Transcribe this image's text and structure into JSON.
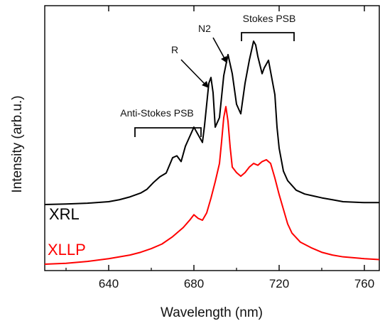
{
  "chart_data": {
    "type": "line",
    "title": "",
    "xlabel": "Wavelength (nm)",
    "ylabel": "Intensity (arb.u.)",
    "xlim": [
      610,
      767
    ],
    "ylim": [
      0,
      1
    ],
    "y_tick_labels": "none",
    "grid": false,
    "x_ticks": [
      640,
      680,
      720,
      760
    ],
    "x_tick_labels": [
      "640",
      "680",
      "720",
      "760"
    ],
    "legend": "none",
    "series": [
      {
        "name": "XRL",
        "color": "#000000",
        "x": [
          610,
          620,
          630,
          640,
          645,
          650,
          655,
          658,
          661,
          664,
          667,
          670,
          672,
          674,
          676,
          678,
          680,
          682,
          684,
          685,
          687,
          688,
          689,
          690,
          692,
          694,
          696,
          698,
          700,
          702,
          704,
          706,
          708,
          709,
          710,
          712,
          713,
          715,
          716,
          718,
          719,
          720,
          722,
          724,
          728,
          732,
          736,
          740,
          745,
          750,
          760,
          767
        ],
        "y": [
          0.145,
          0.148,
          0.152,
          0.16,
          0.17,
          0.185,
          0.205,
          0.225,
          0.26,
          0.29,
          0.31,
          0.39,
          0.4,
          0.37,
          0.45,
          0.5,
          0.55,
          0.51,
          0.47,
          0.56,
          0.78,
          0.81,
          0.73,
          0.55,
          0.6,
          0.82,
          0.93,
          0.83,
          0.67,
          0.62,
          0.78,
          0.9,
          1.0,
          0.98,
          0.92,
          0.83,
          0.86,
          0.9,
          0.84,
          0.72,
          0.55,
          0.44,
          0.32,
          0.27,
          0.22,
          0.2,
          0.19,
          0.18,
          0.17,
          0.16,
          0.155,
          0.155
        ]
      },
      {
        "name": "XLLP",
        "color": "#ff0000",
        "x": [
          610,
          620,
          630,
          640,
          650,
          655,
          660,
          665,
          670,
          675,
          678,
          680,
          682,
          684,
          686,
          688,
          690,
          692,
          693,
          694,
          695,
          696,
          697,
          698,
          700,
          702,
          704,
          706,
          708,
          710,
          712,
          714,
          716,
          718,
          720,
          722,
          724,
          726,
          730,
          735,
          740,
          745,
          750,
          760,
          767
        ],
        "y": [
          0.0,
          0.005,
          0.015,
          0.03,
          0.05,
          0.065,
          0.085,
          0.11,
          0.15,
          0.2,
          0.24,
          0.27,
          0.25,
          0.24,
          0.28,
          0.36,
          0.45,
          0.55,
          0.67,
          0.8,
          0.86,
          0.78,
          0.64,
          0.53,
          0.5,
          0.48,
          0.5,
          0.53,
          0.55,
          0.54,
          0.56,
          0.57,
          0.55,
          0.47,
          0.38,
          0.3,
          0.22,
          0.17,
          0.12,
          0.09,
          0.065,
          0.05,
          0.04,
          0.03,
          0.025
        ]
      }
    ],
    "series_labels": [
      {
        "text": "XRL",
        "color": "#000000"
      },
      {
        "text": "XLLP",
        "color": "#ff0000"
      }
    ],
    "annotations": [
      {
        "text": "Anti-Stokes PSB",
        "type": "bracket",
        "range": [
          652,
          683
        ]
      },
      {
        "text": "Stokes PSB",
        "type": "bracket",
        "range": [
          701,
          727
        ]
      },
      {
        "text": "R",
        "type": "arrow",
        "points_to_x": 688
      },
      {
        "text": "N2",
        "type": "arrow",
        "points_to_x": 696
      }
    ]
  }
}
